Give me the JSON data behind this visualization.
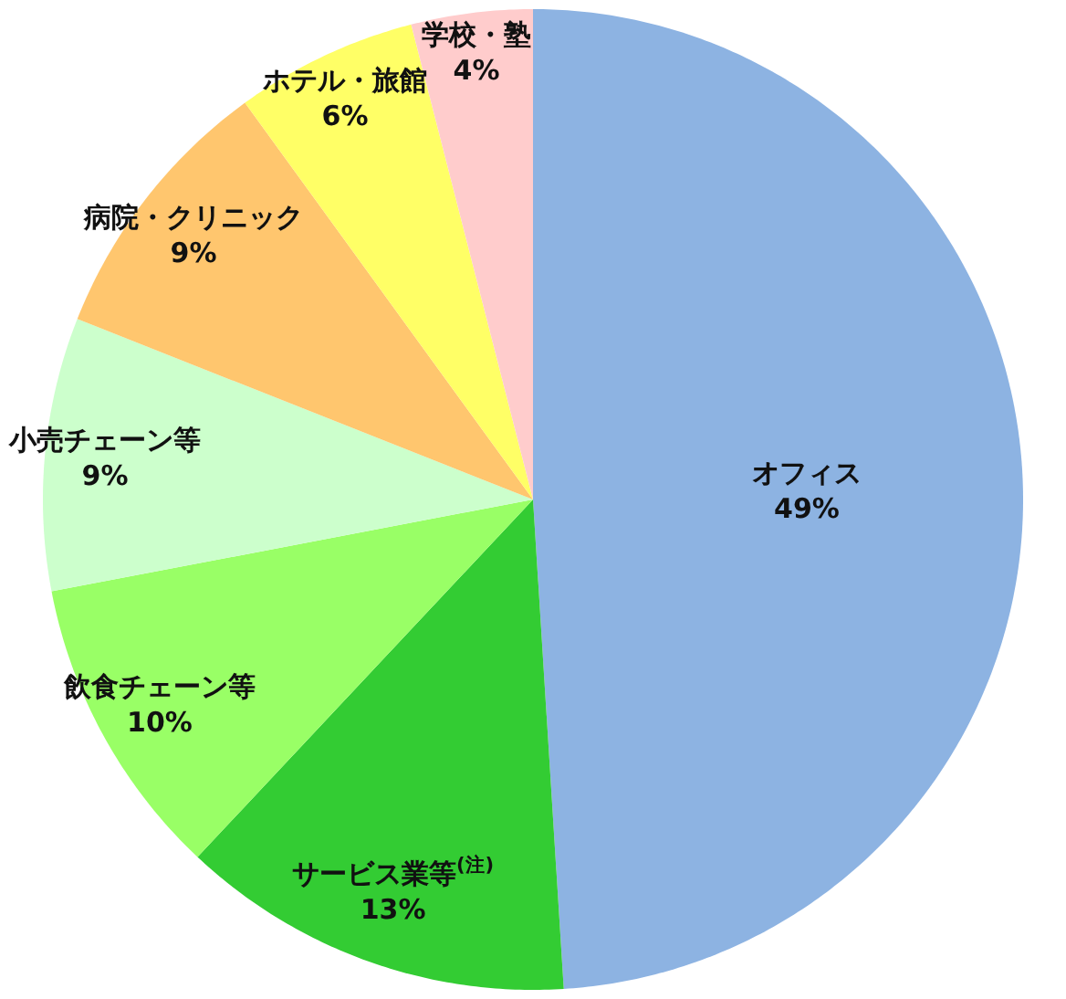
{
  "chart_data": {
    "type": "pie",
    "categories": [
      "オフィス",
      "サービス業等$^{(注)}$",
      "飲食チェーン等",
      "小売チェーン等",
      "病院・クリニック",
      "ホテル・旅館",
      "学校・塾"
    ],
    "values": [
      49,
      13,
      10,
      9,
      9,
      6,
      4
    ],
    "value_labels": [
      "49%",
      "13%",
      "10%",
      "9%",
      "9%",
      "6%",
      "4%"
    ],
    "colors": [
      "#8db3e2",
      "#33cc33",
      "#99ff66",
      "#ccffcc",
      "#ffc66e",
      "#ffff66",
      "#ffcccc"
    ]
  }
}
